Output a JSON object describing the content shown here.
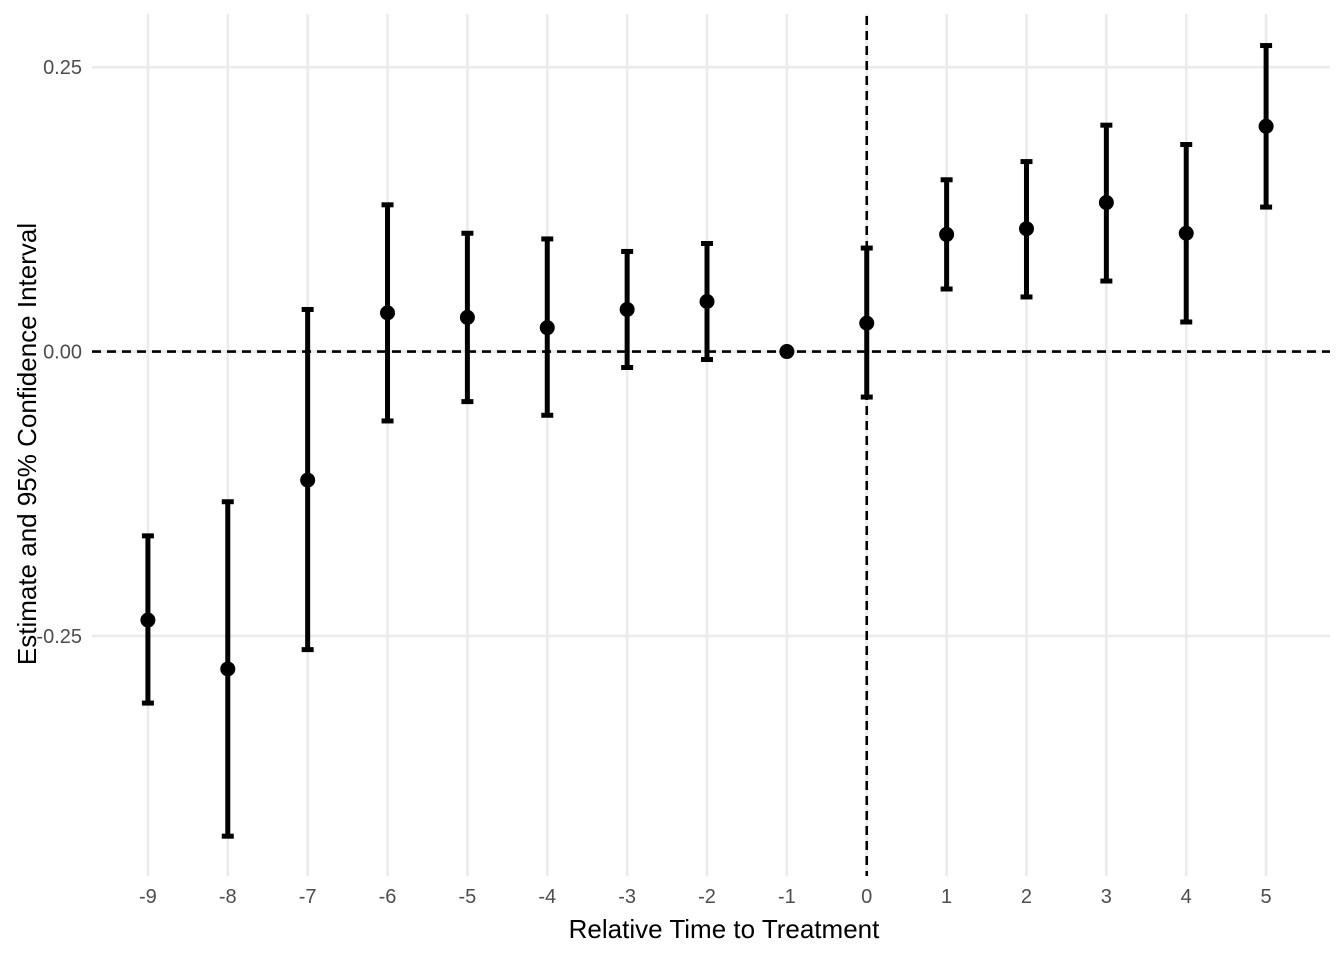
{
  "chart_data": {
    "type": "scatter",
    "title": "",
    "xlabel": "Relative Time to Treatment",
    "ylabel": "Estimate and 95% Confidence Interval",
    "x_ticks": [
      -9,
      -8,
      -7,
      -6,
      -5,
      -4,
      -3,
      -2,
      -1,
      0,
      1,
      2,
      3,
      4,
      5
    ],
    "x_tick_labels": [
      "-9",
      "-8",
      "-7",
      "-6",
      "-5",
      "-4",
      "-3",
      "-2",
      "-1",
      "0",
      "1",
      "2",
      "3",
      "4",
      "5"
    ],
    "y_ticks": [
      -0.25,
      0.0,
      0.25
    ],
    "y_tick_labels": [
      "-0.25",
      "0.00",
      "0.25"
    ],
    "xlim": [
      -9.7,
      5.8
    ],
    "ylim": [
      -0.461,
      0.302
    ],
    "grid": true,
    "reference_lines": {
      "horizontal": 0,
      "vertical": 0,
      "style": "dashed"
    },
    "points": [
      {
        "x": -9,
        "estimate": -0.236,
        "lower": -0.309,
        "upper": -0.162
      },
      {
        "x": -8,
        "estimate": -0.279,
        "lower": -0.426,
        "upper": -0.132
      },
      {
        "x": -7,
        "estimate": -0.113,
        "lower": -0.262,
        "upper": 0.037
      },
      {
        "x": -6,
        "estimate": 0.034,
        "lower": -0.061,
        "upper": 0.129
      },
      {
        "x": -5,
        "estimate": 0.03,
        "lower": -0.044,
        "upper": 0.104
      },
      {
        "x": -4,
        "estimate": 0.021,
        "lower": -0.056,
        "upper": 0.099
      },
      {
        "x": -3,
        "estimate": 0.037,
        "lower": -0.014,
        "upper": 0.088
      },
      {
        "x": -2,
        "estimate": 0.044,
        "lower": -0.007,
        "upper": 0.095
      },
      {
        "x": -1,
        "estimate": 0.0,
        "lower": null,
        "upper": null
      },
      {
        "x": 0,
        "estimate": 0.025,
        "lower": -0.04,
        "upper": 0.091
      },
      {
        "x": 1,
        "estimate": 0.103,
        "lower": 0.055,
        "upper": 0.151
      },
      {
        "x": 2,
        "estimate": 0.108,
        "lower": 0.048,
        "upper": 0.167
      },
      {
        "x": 3,
        "estimate": 0.131,
        "lower": 0.062,
        "upper": 0.199
      },
      {
        "x": 4,
        "estimate": 0.104,
        "lower": 0.026,
        "upper": 0.182
      },
      {
        "x": 5,
        "estimate": 0.198,
        "lower": 0.127,
        "upper": 0.269
      }
    ]
  }
}
